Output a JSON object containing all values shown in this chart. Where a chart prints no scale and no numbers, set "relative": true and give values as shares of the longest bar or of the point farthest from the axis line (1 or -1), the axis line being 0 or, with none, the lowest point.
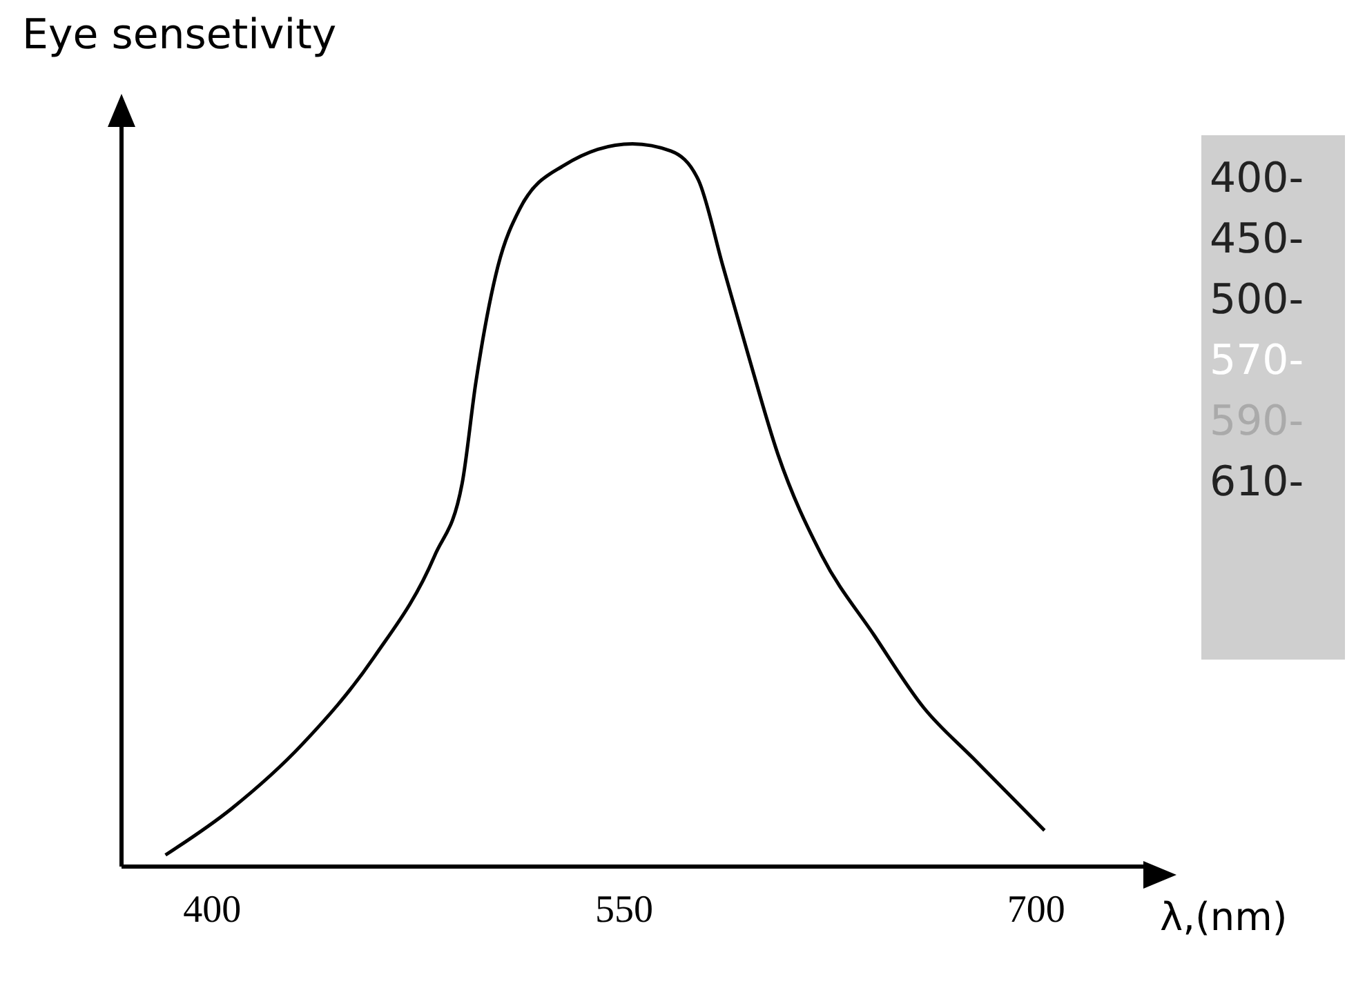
{
  "chart_data": {
    "type": "line",
    "ylabel": "Eye sensetivity",
    "xlabel": "λ,(nm)",
    "relative": true,
    "x": [
      383,
      407,
      433,
      459,
      481,
      491,
      496,
      504,
      512,
      528,
      553,
      567,
      577,
      586,
      595,
      606,
      622,
      641,
      659,
      677,
      703
    ],
    "series": [
      {
        "color": "#000000",
        "values": [
          0.016,
          0.08,
          0.17,
          0.29,
          0.43,
          0.53,
          0.67,
          0.83,
          0.91,
          0.97,
          1,
          0.99,
          0.95,
          0.83,
          0.71,
          0.57,
          0.43,
          0.32,
          0.22,
          0.15,
          0.05
        ]
      }
    ],
    "xlim": [
      367,
      739
    ],
    "xticks": [
      400,
      550,
      700
    ],
    "grid": false,
    "legend": false,
    "marker": "none",
    "line_style": "solid",
    "annotations": [
      "400-",
      "450-",
      "500-",
      "570-",
      "590-",
      "610-"
    ]
  }
}
